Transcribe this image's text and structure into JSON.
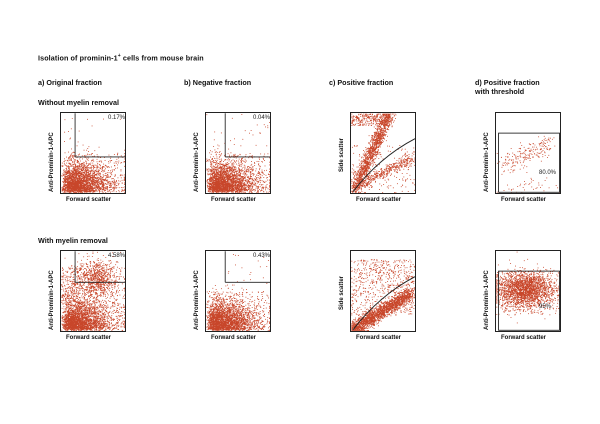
{
  "chart_data": {
    "type": "scatter",
    "title": "Isolation of prominin-1",
    "title_superscript": "+",
    "title_suffix": " cells from mouse brain",
    "columns": [
      {
        "id": "a",
        "label": "a) Original fraction"
      },
      {
        "id": "b",
        "label": "b) Negative fraction"
      },
      {
        "id": "c",
        "label": "c) Positive fraction"
      },
      {
        "id": "d",
        "label": "d) Positive fraction with threshold",
        "label_line1": "d) Positive fraction",
        "label_line2": "with threshold"
      }
    ],
    "rows": [
      {
        "id": "without",
        "label": "Without myelin removal"
      },
      {
        "id": "with",
        "label": "With myelin removal"
      }
    ],
    "point_color": "#c8462a",
    "panels": [
      {
        "row": "without",
        "col": "a",
        "xlabel": "Forward scatter",
        "ylabel": "Anti-Prominin-1-APC",
        "gate_type": "quadrant",
        "gate_x": 0.22,
        "gate_y": 0.55,
        "gate_percent": "0.17%",
        "population": "low-dense"
      },
      {
        "row": "without",
        "col": "b",
        "xlabel": "Forward scatter",
        "ylabel": "Anti-Prominin-1-APC",
        "gate_type": "quadrant",
        "gate_x": 0.3,
        "gate_y": 0.55,
        "gate_percent": "0.04%",
        "population": "low-dense"
      },
      {
        "row": "without",
        "col": "c",
        "xlabel": "Forward scatter",
        "ylabel": "Side scatter",
        "gate_type": "curve",
        "gate_percent": "",
        "population": "diagonal-split"
      },
      {
        "row": "without",
        "col": "d",
        "xlabel": "Forward scatter",
        "ylabel": "Anti-Prominin-1-APC",
        "gate_type": "box",
        "gate_x": 0.04,
        "gate_y": 0.25,
        "gate_percent": "80.0%",
        "population": "sparse-rising"
      },
      {
        "row": "with",
        "col": "a",
        "xlabel": "Forward scatter",
        "ylabel": "Anti-Prominin-1-APC",
        "gate_type": "quadrant",
        "gate_x": 0.22,
        "gate_y": 0.39,
        "gate_percent": "4.58%",
        "population": "low-plus-upper"
      },
      {
        "row": "with",
        "col": "b",
        "xlabel": "Forward scatter",
        "ylabel": "Anti-Prominin-1-APC",
        "gate_type": "quadrant",
        "gate_x": 0.3,
        "gate_y": 0.39,
        "gate_percent": "0.43%",
        "population": "low-dense"
      },
      {
        "row": "with",
        "col": "c",
        "xlabel": "Forward scatter",
        "ylabel": "Side scatter",
        "gate_type": "curve",
        "gate_percent": "",
        "population": "diagonal-dense"
      },
      {
        "row": "with",
        "col": "d",
        "xlabel": "Forward scatter",
        "ylabel": "Anti-Prominin-1-APC",
        "gate_type": "box",
        "gate_x": 0.04,
        "gate_y": 0.25,
        "gate_percent": "95%",
        "population": "dense-blob"
      }
    ]
  }
}
